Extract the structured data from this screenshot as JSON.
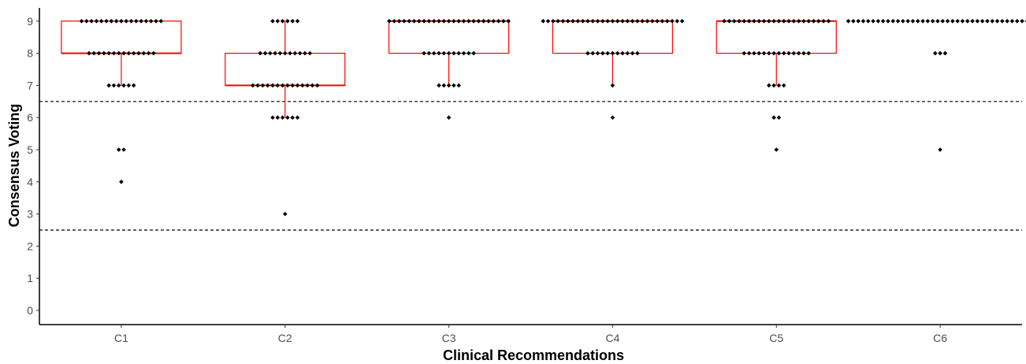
{
  "chart_data": {
    "type": "dotplot-boxplot",
    "xlabel": "Clinical Recommendations",
    "ylabel": "Consensus Voting",
    "ylim": [
      0,
      9
    ],
    "yticks": [
      "0",
      "1",
      "2",
      "3",
      "4",
      "5",
      "6",
      "7",
      "8",
      "9"
    ],
    "reference_lines": [
      6.5,
      2.5
    ],
    "grid": false,
    "colors": {
      "box": "#ff0000",
      "dot": "#000000",
      "axis": "#000000",
      "refline": "#000000"
    },
    "groups": [
      {
        "label": "C1",
        "counts": {
          "9": 17,
          "8": 14,
          "7": 6,
          "5": 2,
          "4": 1
        },
        "box": {
          "q1": 8,
          "median": 8,
          "q3": 9,
          "lower": 7,
          "upper": 9
        }
      },
      {
        "label": "C2",
        "counts": {
          "9": 6,
          "8": 11,
          "7": 14,
          "6": 6,
          "3": 1
        },
        "box": {
          "q1": 7,
          "median": 7,
          "q3": 8,
          "lower": 6,
          "upper": 9
        }
      },
      {
        "label": "C3",
        "counts": {
          "9": 25,
          "8": 11,
          "7": 5,
          "6": 1
        },
        "box": {
          "q1": 8,
          "median": 9,
          "q3": 9,
          "lower": 7,
          "upper": 9
        }
      },
      {
        "label": "C4",
        "counts": {
          "9": 29,
          "8": 11,
          "7": 1,
          "6": 1
        },
        "box": {
          "q1": 8,
          "median": 9,
          "q3": 9,
          "lower": 7,
          "upper": 9
        }
      },
      {
        "label": "C5",
        "counts": {
          "9": 22,
          "8": 14,
          "7": 4,
          "6": 2,
          "5": 1
        },
        "box": {
          "q1": 8,
          "median": 9,
          "q3": 9,
          "lower": 7,
          "upper": 9
        }
      },
      {
        "label": "C6",
        "counts": {
          "9": 38,
          "8": 3,
          "5": 1
        },
        "box": null
      }
    ]
  }
}
